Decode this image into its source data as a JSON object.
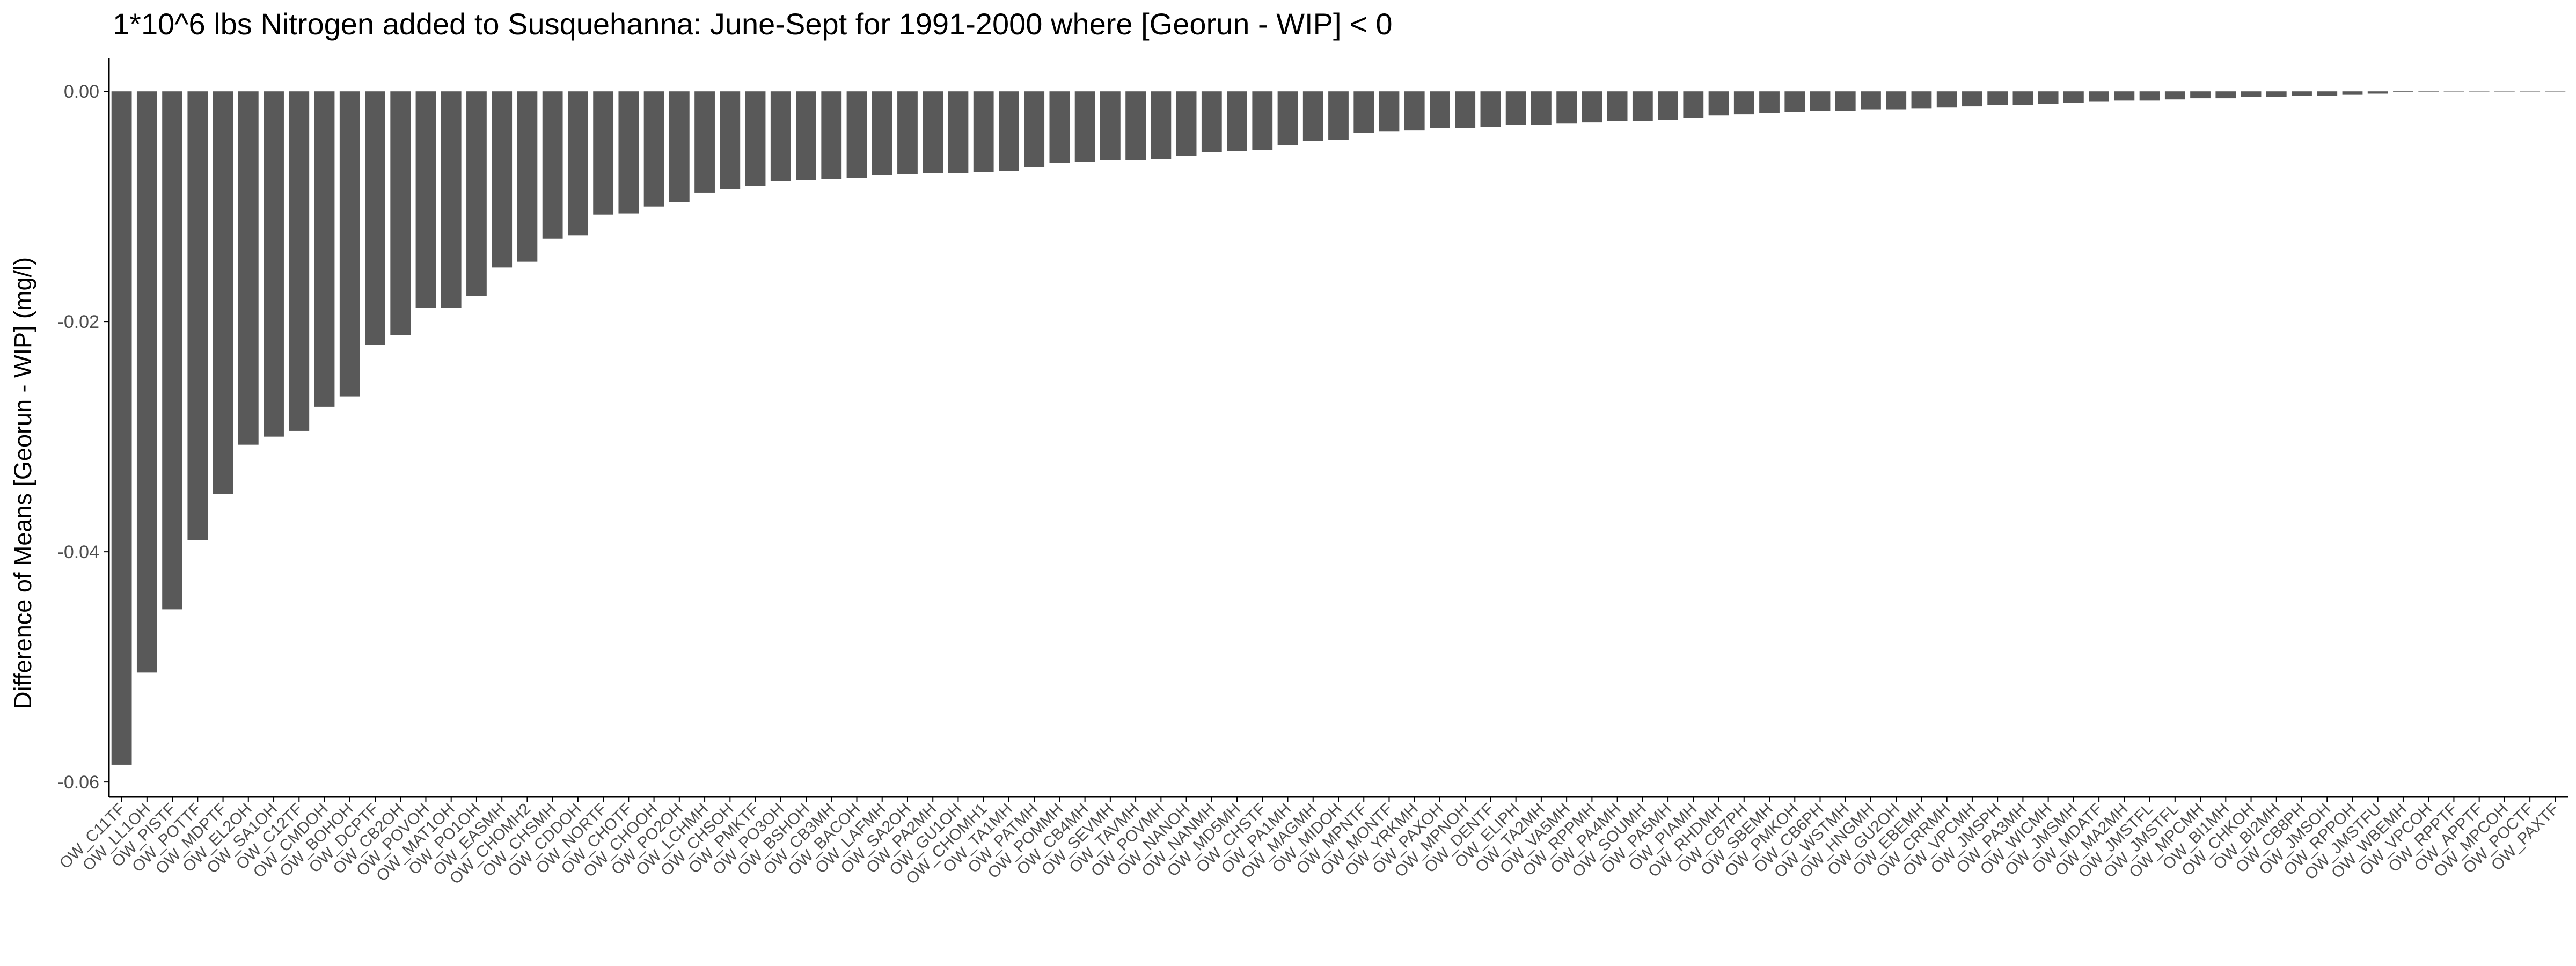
{
  "chart_data": {
    "type": "bar",
    "title": "1*10^6 lbs Nitrogen added to Susquehanna: June-Sept for 1991-2000 where [Georun - WIP] < 0",
    "xlabel": "",
    "ylabel": "Difference of Means [Georun - WIP] (mg/l)",
    "ylim": [
      -0.0613,
      0.0029
    ],
    "y_ticks": [
      0.0,
      -0.02,
      -0.04,
      -0.06
    ],
    "y_tick_labels": [
      "0.00",
      "-0.02",
      "-0.04",
      "-0.06"
    ],
    "grid": false,
    "legend": "none",
    "categories": [
      "OW_C11TF",
      "OW_LL1OH",
      "OW_PISTF",
      "OW_POTTF",
      "OW_MDPTF",
      "OW_EL2OH",
      "OW_SA1OH",
      "OW_C12TF",
      "OW_CMDOH",
      "OW_BOHOH",
      "OW_DCPTF",
      "OW_CB2OH",
      "OW_POVOH",
      "OW_MAT1OH",
      "OW_PO1OH",
      "OW_EASMH",
      "OW_CHOMH2",
      "OW_CHSMH",
      "OW_CDDOH",
      "OW_NORTF",
      "OW_CHOTF",
      "OW_CHOOH",
      "OW_PO2OH",
      "OW_LCHMH",
      "OW_CHSOH",
      "OW_PMKTF",
      "OW_PO3OH",
      "OW_BSHOH",
      "OW_CB3MH",
      "OW_BACOH",
      "OW_LAFMH",
      "OW_SA2OH",
      "OW_PA2MH",
      "OW_GU1OH",
      "OW_CHOMH1",
      "OW_TA1MH",
      "OW_PATMH",
      "OW_POMMH",
      "OW_CB4MH",
      "OW_SEVMH",
      "OW_TAVMH",
      "OW_POVMH",
      "OW_NANOH",
      "OW_NANMH",
      "OW_MD5MH",
      "OW_CHSTF",
      "OW_PA1MH",
      "OW_MAGMH",
      "OW_MIDOH",
      "OW_MPNTF",
      "OW_MONTF",
      "OW_YRKMH",
      "OW_PAXOH",
      "OW_MPNOH",
      "OW_DENTF",
      "OW_ELIPH",
      "OW_TA2MH",
      "OW_VA5MH",
      "OW_RPPMH",
      "OW_PA4MH",
      "OW_SOUMH",
      "OW_PA5MH",
      "OW_PIAMH",
      "OW_RHDMH",
      "OW_CB7PH",
      "OW_SBEMH",
      "OW_PMKOH",
      "OW_CB6PH",
      "OW_WSTMH",
      "OW_HNGMH",
      "OW_GU2OH",
      "OW_EBEMH",
      "OW_CRRMH",
      "OW_VPCMH",
      "OW_JMSPH",
      "OW_PA3MH",
      "OW_WICMH",
      "OW_JMSMH",
      "OW_MDATF",
      "OW_MA2MH",
      "OW_JMSTFL",
      "OW_JMSTFL",
      "OW_MPCMH",
      "OW_BI1MH",
      "OW_CHKOH",
      "OW_BI2MH",
      "OW_CB8PH",
      "OW_JMSOH",
      "OW_RPPOH",
      "OW_JMSTFU",
      "OW_WBEMH",
      "OW_VPCOH",
      "OW_RPPTF",
      "OW_APPTF",
      "OW_MPCOH",
      "OW_POCTF",
      "OW_PAXTF"
    ],
    "values": [
      -0.0585,
      -0.0505,
      -0.045,
      -0.039,
      -0.035,
      -0.0307,
      -0.03,
      -0.0295,
      -0.0274,
      -0.0265,
      -0.022,
      -0.0212,
      -0.0188,
      -0.0188,
      -0.0178,
      -0.0153,
      -0.0148,
      -0.0128,
      -0.0125,
      -0.0107,
      -0.0106,
      -0.01,
      -0.0096,
      -0.0088,
      -0.0085,
      -0.0082,
      -0.0078,
      -0.0077,
      -0.0076,
      -0.0075,
      -0.0073,
      -0.0072,
      -0.0071,
      -0.0071,
      -0.007,
      -0.0069,
      -0.0066,
      -0.0062,
      -0.0061,
      -0.006,
      -0.006,
      -0.0059,
      -0.0056,
      -0.0053,
      -0.0052,
      -0.0051,
      -0.0047,
      -0.0043,
      -0.0042,
      -0.0036,
      -0.0035,
      -0.0034,
      -0.0032,
      -0.0032,
      -0.0031,
      -0.0029,
      -0.0029,
      -0.0028,
      -0.0027,
      -0.0026,
      -0.0026,
      -0.0025,
      -0.0023,
      -0.0021,
      -0.002,
      -0.0019,
      -0.0018,
      -0.0017,
      -0.0017,
      -0.0016,
      -0.0016,
      -0.0015,
      -0.0014,
      -0.0013,
      -0.0012,
      -0.0012,
      -0.0011,
      -0.001,
      -0.0009,
      -0.0008,
      -0.0008,
      -0.0007,
      -0.0006,
      -0.0006,
      -0.0005,
      -0.0005,
      -0.0004,
      -0.0004,
      -0.0003,
      -0.0002,
      -5e-05,
      -3e-05,
      -2e-05,
      -1e-05,
      -8e-06,
      -5e-06,
      -3e-06
    ],
    "colors": {
      "bar": "#595959",
      "axis": "#000000",
      "tick_label": "#4d4d4d",
      "background": "#ffffff"
    }
  }
}
